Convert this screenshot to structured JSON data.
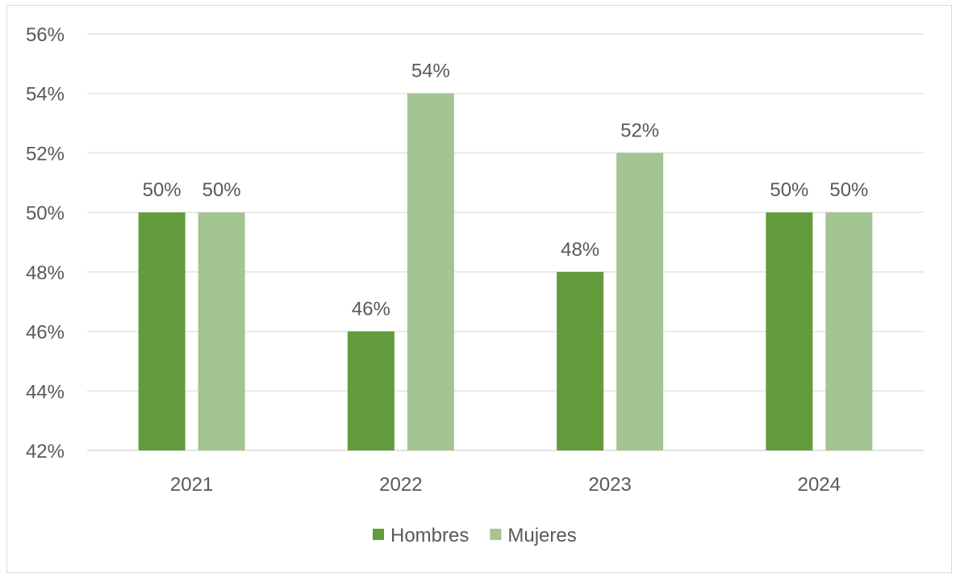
{
  "chart_data": {
    "type": "bar",
    "title": "",
    "xlabel": "",
    "ylabel": "",
    "categories": [
      "2021",
      "2022",
      "2023",
      "2024"
    ],
    "series": [
      {
        "name": "Hombres",
        "values": [
          50,
          46,
          48,
          50
        ],
        "color": "#629C3D"
      },
      {
        "name": "Mujeres",
        "values": [
          50,
          54,
          52,
          50
        ],
        "color": "#A2C591"
      }
    ],
    "ylim": [
      42,
      56
    ],
    "yticks": [
      "42%",
      "44%",
      "46%",
      "48%",
      "50%",
      "52%",
      "54%",
      "56%"
    ],
    "grid": true,
    "legend": "bottom",
    "value_suffix": "%"
  }
}
